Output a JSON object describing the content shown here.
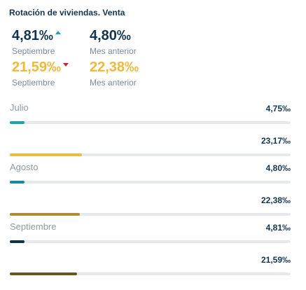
{
  "title": "Rotación de viviendas. Venta",
  "kpis": {
    "row1": {
      "current_value": "4,81‰",
      "current_label": "Septiembre",
      "trend": "up",
      "previous_value": "4,80‰",
      "previous_label": "Mes anterior"
    },
    "row2": {
      "current_value": "21,59‰",
      "current_label": "Septiembre",
      "trend": "down",
      "previous_value": "22,38‰",
      "previous_label": "Mes anterior"
    }
  },
  "colors": {
    "dark_value": "#13344e",
    "gold_value": "#f0b93a",
    "trend_up": "#1aa5a8",
    "trend_down": "#c0282d",
    "track": "#e6e8ea"
  },
  "chart_data": {
    "type": "bar",
    "orientation": "horizontal",
    "xlim": [
      0,
      90
    ],
    "groups": [
      {
        "label": "Julio",
        "bars": [
          {
            "value": 4.75,
            "display": "4,75‰",
            "color": "#1aa5a8"
          },
          {
            "value": 23.17,
            "display": "23,17‰",
            "color": "#f0b93a"
          }
        ]
      },
      {
        "label": "Agosto",
        "bars": [
          {
            "value": 4.8,
            "display": "4,80‰",
            "color": "#178a9c"
          },
          {
            "value": 22.38,
            "display": "22,38‰",
            "color": "#b08a35"
          }
        ]
      },
      {
        "label": "Septiembre",
        "bars": [
          {
            "value": 4.81,
            "display": "4,81‰",
            "color": "#13344e"
          },
          {
            "value": 21.59,
            "display": "21,59‰",
            "color": "#6b5420"
          }
        ]
      }
    ]
  }
}
